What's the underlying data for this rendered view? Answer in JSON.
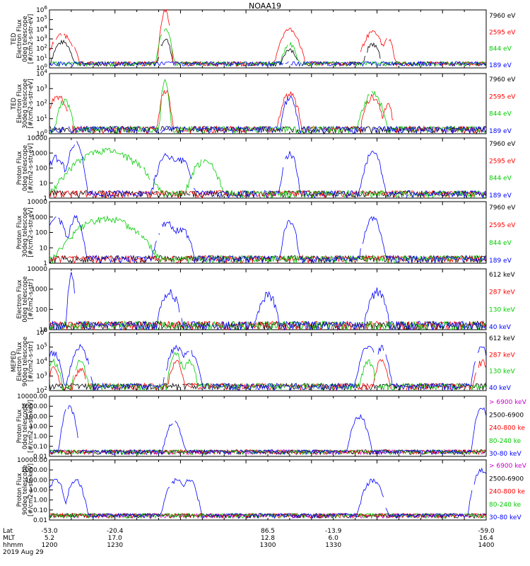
{
  "title": "NOAA19",
  "footer": {
    "rows": [
      {
        "label": "Lat",
        "values": [
          "-53.0",
          "-20.4",
          "86.5",
          "-13.9",
          "-59.0"
        ]
      },
      {
        "label": "MLT",
        "values": [
          "5.2",
          "17.0",
          "12.8",
          "6.0",
          "16.4"
        ]
      },
      {
        "label": "hhmm",
        "values": [
          "1200",
          "1230",
          "1300",
          "1330",
          "1400"
        ]
      }
    ],
    "date": "2019 Aug 29"
  },
  "chart_data": [
    {
      "type": "line",
      "instrument": "TED",
      "ylabel": "TED\nElectron Flux\n0deg telescope\n[#/cm2-s-str-eV]",
      "yscale": "log",
      "ylim": [
        1,
        1000000
      ],
      "yticks": [
        "10^0",
        "10^1",
        "10^2",
        "10^3",
        "10^4",
        "10^5",
        "10^6"
      ],
      "legend": [
        {
          "label": "7960 eV",
          "color": "#000000"
        },
        {
          "label": "2595 eV",
          "color": "#ff0000"
        },
        {
          "label": "844 eV",
          "color": "#00cc00"
        },
        {
          "label": "189 eV",
          "color": "#0000ff"
        }
      ],
      "bursts": [
        {
          "center": 1206,
          "width": 3,
          "peak": 3000,
          "series": 1
        },
        {
          "center": 1206,
          "width": 2.5,
          "peak": 500,
          "series": 0
        },
        {
          "center": 1253,
          "width": 1,
          "peak": 1000000,
          "series": 1
        },
        {
          "center": 1253,
          "width": 1.5,
          "peak": 10000,
          "series": 2
        },
        {
          "center": 1253,
          "width": 1.5,
          "peak": 1000,
          "series": 0
        },
        {
          "center": 1310,
          "width": 2.5,
          "peak": 10000,
          "series": 1
        },
        {
          "center": 1310,
          "width": 2,
          "peak": 300,
          "series": 2
        },
        {
          "center": 1310,
          "width": 2,
          "peak": 100,
          "series": 0
        },
        {
          "center": 1348,
          "width": 2.5,
          "peak": 5000,
          "series": 1
        },
        {
          "center": 1348,
          "width": 2,
          "peak": 300,
          "series": 0
        },
        {
          "center": 1355,
          "width": 1.5,
          "peak": 1000,
          "series": 1
        }
      ]
    },
    {
      "type": "line",
      "instrument": "TED",
      "ylabel": "TED\nElectron Flux\n30deg telescope\n[#/cm2-s-str-eV]",
      "yscale": "log",
      "ylim": [
        1,
        10000
      ],
      "yticks": [
        "10^0",
        "10^1",
        "10^2",
        "10^3",
        "10^4"
      ],
      "legend": [
        {
          "label": "7960 eV",
          "color": "#000000"
        },
        {
          "label": "2595 eV",
          "color": "#ff0000"
        },
        {
          "label": "844 eV",
          "color": "#00cc00"
        },
        {
          "label": "189 eV",
          "color": "#0000ff"
        }
      ],
      "bursts": [
        {
          "center": 1204,
          "width": 3,
          "peak": 300,
          "series": 1
        },
        {
          "center": 1207,
          "width": 2,
          "peak": 200,
          "series": 2
        },
        {
          "center": 1253,
          "width": 1,
          "peak": 5000,
          "series": 2
        },
        {
          "center": 1253,
          "width": 1.5,
          "peak": 800,
          "series": 1
        },
        {
          "center": 1310,
          "width": 2.5,
          "peak": 500,
          "series": 1
        },
        {
          "center": 1310,
          "width": 2,
          "peak": 300,
          "series": 3
        },
        {
          "center": 1348,
          "width": 3,
          "peak": 500,
          "series": 2
        },
        {
          "center": 1348,
          "width": 2.5,
          "peak": 300,
          "series": 1
        },
        {
          "center": 1355,
          "width": 1.5,
          "peak": 100,
          "series": 1
        }
      ]
    },
    {
      "type": "line",
      "instrument": "TED",
      "ylabel": "Proton Flux\n0deg telescope\n[#/cm2-s-str-eV]",
      "yscale": "log",
      "ylim": [
        1,
        10000
      ],
      "yticks": [
        "1",
        "10",
        "100",
        "1000",
        "10000"
      ],
      "legend": [
        {
          "label": "7960 eV",
          "color": "#000000"
        },
        {
          "label": "2595 eV",
          "color": "#ff0000"
        },
        {
          "label": "844 eV",
          "color": "#00cc00"
        },
        {
          "label": "189 eV",
          "color": "#0000ff"
        }
      ],
      "bursts": [
        {
          "center": 1203,
          "width": 3,
          "peak": 500,
          "series": 3
        },
        {
          "center": 1212,
          "width": 2,
          "peak": 5000,
          "series": 3
        },
        {
          "center": 1226,
          "width": 10,
          "peak": 1500,
          "series": 2
        },
        {
          "center": 1254,
          "width": 3,
          "peak": 800,
          "series": 3
        },
        {
          "center": 1260,
          "width": 3,
          "peak": 400,
          "series": 3
        },
        {
          "center": 1271,
          "width": 4,
          "peak": 300,
          "series": 2
        },
        {
          "center": 1310,
          "width": 2,
          "peak": 1000,
          "series": 3
        },
        {
          "center": 1348,
          "width": 2.5,
          "peak": 1000,
          "series": 3
        }
      ]
    },
    {
      "type": "line",
      "instrument": "TED",
      "ylabel": "Proton Flux\n30deg telescope\n[#/cm2-s-str-eV]",
      "yscale": "log",
      "ylim": [
        1,
        10000
      ],
      "yticks": [
        "1",
        "10",
        "100",
        "1000",
        "10000"
      ],
      "legend": [
        {
          "label": "7960 eV",
          "color": "#000000"
        },
        {
          "label": "2595 eV",
          "color": "#ff0000"
        },
        {
          "label": "844 eV",
          "color": "#00cc00"
        },
        {
          "label": "189 eV",
          "color": "#0000ff"
        }
      ],
      "bursts": [
        {
          "center": 1203,
          "width": 3,
          "peak": 800,
          "series": 3
        },
        {
          "center": 1212,
          "width": 2,
          "peak": 1000,
          "series": 3
        },
        {
          "center": 1226,
          "width": 10,
          "peak": 800,
          "series": 2
        },
        {
          "center": 1254,
          "width": 3,
          "peak": 500,
          "series": 3
        },
        {
          "center": 1260,
          "width": 3,
          "peak": 200,
          "series": 3
        },
        {
          "center": 1310,
          "width": 2,
          "peak": 500,
          "series": 3
        },
        {
          "center": 1348,
          "width": 2.5,
          "peak": 800,
          "series": 3
        }
      ]
    },
    {
      "type": "line",
      "instrument": "MEPED",
      "ylabel": "Electron Flux\n0deg telescope\n[#/cm2-s-str]",
      "yscale": "log",
      "ylim": [
        10,
        10000
      ],
      "yticks": [
        "10",
        "100",
        "1000",
        "10000"
      ],
      "legend": [
        {
          "label": "612 keV",
          "color": "#000000"
        },
        {
          "label": "287 keV",
          "color": "#ff0000"
        },
        {
          "label": "130 keV",
          "color": "#00cc00"
        },
        {
          "label": "40 keV",
          "color": "#0000ff"
        }
      ],
      "bursts": [
        {
          "center": 1210,
          "width": 1,
          "peak": 5000,
          "series": 3
        },
        {
          "center": 1255,
          "width": 3,
          "peak": 800,
          "series": 3
        },
        {
          "center": 1300,
          "width": 3,
          "peak": 600,
          "series": 3
        },
        {
          "center": 1350,
          "width": 3,
          "peak": 800,
          "series": 3
        }
      ]
    },
    {
      "type": "line",
      "instrument": "MEPED",
      "ylabel": "MEPED\nElectron Flux\n90deg telescope\n[#/cm2-s-str]",
      "yscale": "log",
      "ylim": [
        100,
        1000000
      ],
      "yticks": [
        "10^2",
        "10^3",
        "10^4",
        "10^5",
        "10^6"
      ],
      "legend": [
        {
          "label": "612 keV",
          "color": "#000000"
        },
        {
          "label": "287 keV",
          "color": "#ff0000"
        },
        {
          "label": "130 keV",
          "color": "#00cc00"
        },
        {
          "label": "40 keV",
          "color": "#0000ff"
        }
      ],
      "bursts": [
        {
          "center": 1202,
          "width": 2,
          "peak": 50000,
          "series": 3
        },
        {
          "center": 1202,
          "width": 2,
          "peak": 10000,
          "series": 2
        },
        {
          "center": 1202,
          "width": 2,
          "peak": 3000,
          "series": 1
        },
        {
          "center": 1214,
          "width": 2.5,
          "peak": 100000,
          "series": 3
        },
        {
          "center": 1214,
          "width": 2,
          "peak": 10000,
          "series": 2
        },
        {
          "center": 1214,
          "width": 2,
          "peak": 3000,
          "series": 1
        },
        {
          "center": 1258,
          "width": 2.5,
          "peak": 100000,
          "series": 3
        },
        {
          "center": 1258,
          "width": 2,
          "peak": 30000,
          "series": 2
        },
        {
          "center": 1258,
          "width": 2,
          "peak": 10000,
          "series": 1
        },
        {
          "center": 1264,
          "width": 2.5,
          "peak": 50000,
          "series": 3
        },
        {
          "center": 1264,
          "width": 2,
          "peak": 10000,
          "series": 2
        },
        {
          "center": 1346,
          "width": 2.5,
          "peak": 100000,
          "series": 3
        },
        {
          "center": 1346,
          "width": 2,
          "peak": 10000,
          "series": 2
        },
        {
          "center": 1352,
          "width": 2,
          "peak": 100000,
          "series": 3
        },
        {
          "center": 1352,
          "width": 2,
          "peak": 10000,
          "series": 1
        },
        {
          "center": 1398,
          "width": 2,
          "peak": 100000,
          "series": 3
        },
        {
          "center": 1398,
          "width": 2,
          "peak": 10000,
          "series": 1
        }
      ]
    },
    {
      "type": "line",
      "instrument": "MEPED",
      "ylabel": "Proton Flux\n0deg telescope\n[#/cm2-s-str-keV]",
      "yscale": "log",
      "ylim": [
        0.01,
        10000
      ],
      "yticks": [
        "0.01",
        "0.10",
        "1.00",
        "10.00",
        "100.00",
        "1000.00",
        "10000.00"
      ],
      "legend": [
        {
          "label": "> 6900 keV",
          "color": "#cc00cc"
        },
        {
          "label": "2500-6900",
          "color": "#000000"
        },
        {
          "label": "240-800 ke",
          "color": "#ff0000"
        },
        {
          "label": "80-240 ke",
          "color": "#00cc00"
        },
        {
          "label": "30-80 keV",
          "color": "#0000ff"
        }
      ],
      "bursts": [
        {
          "center": 1209,
          "width": 1.5,
          "peak": 1000,
          "series": 4
        },
        {
          "center": 1257,
          "width": 2,
          "peak": 30,
          "series": 4
        },
        {
          "center": 1342,
          "width": 2,
          "peak": 100,
          "series": 4
        },
        {
          "center": 1398,
          "width": 1.5,
          "peak": 1000,
          "series": 4
        }
      ]
    },
    {
      "type": "line",
      "instrument": "MEPED",
      "ylabel": "Proton Flux\n90deg telescope\n[#/cm2-s-str-keV]",
      "yscale": "log",
      "ylim": [
        0.01,
        10000
      ],
      "yticks": [
        "0.01",
        "0.10",
        "1.00",
        "10.00",
        "100.00",
        "1000.00",
        "10000.00"
      ],
      "legend": [
        {
          "label": "> 6900 keV",
          "color": "#cc00cc"
        },
        {
          "label": "2500-6900",
          "color": "#000000"
        },
        {
          "label": "240-800 ke",
          "color": "#ff0000"
        },
        {
          "label": "80-240 ke",
          "color": "#00cc00"
        },
        {
          "label": "30-80 keV",
          "color": "#0000ff"
        }
      ],
      "bursts": [
        {
          "center": 1203,
          "width": 2,
          "peak": 100,
          "series": 4
        },
        {
          "center": 1212,
          "width": 2,
          "peak": 100,
          "series": 4
        },
        {
          "center": 1258,
          "width": 2.5,
          "peak": 100,
          "series": 4
        },
        {
          "center": 1264,
          "width": 2,
          "peak": 100,
          "series": 4
        },
        {
          "center": 1348,
          "width": 2.5,
          "peak": 100,
          "series": 4
        },
        {
          "center": 1398,
          "width": 2,
          "peak": 1000,
          "series": 4
        }
      ]
    }
  ]
}
